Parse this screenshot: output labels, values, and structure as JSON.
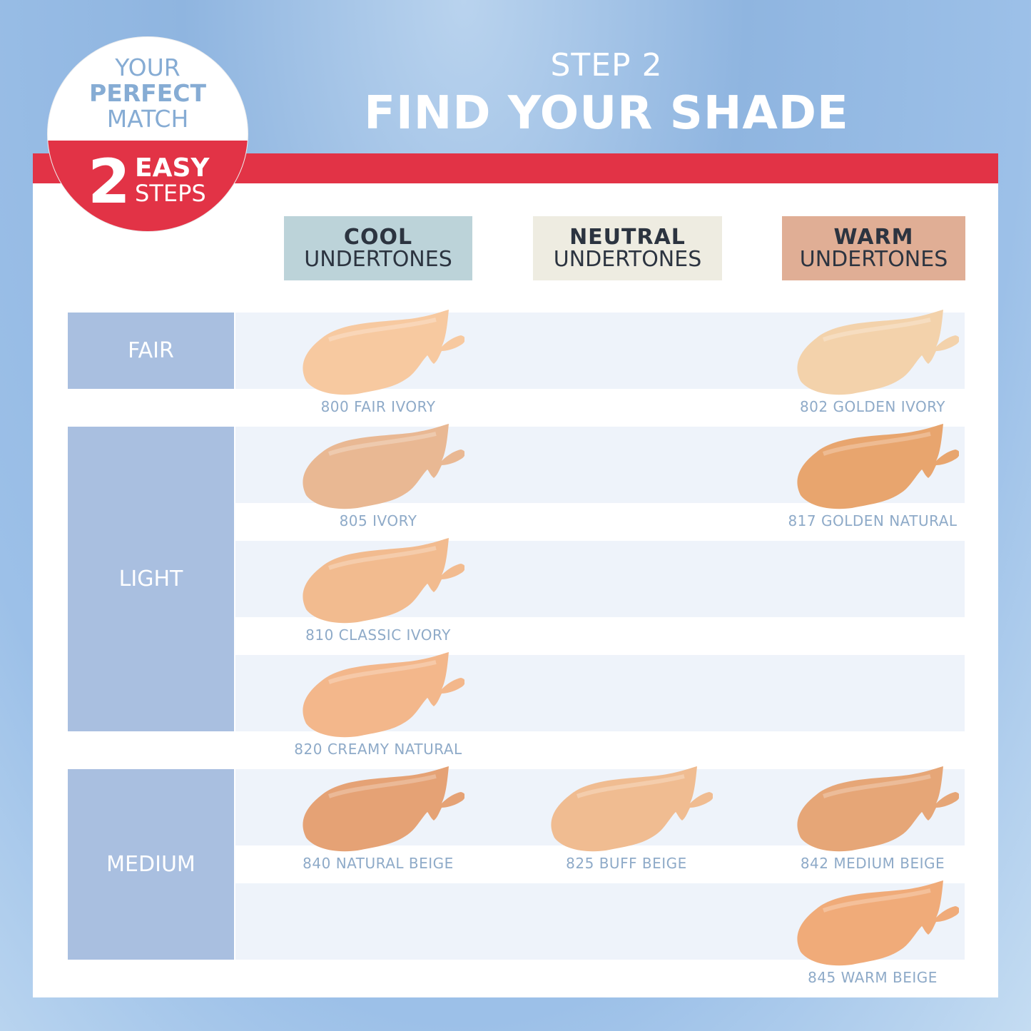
{
  "header": {
    "step": "STEP 2",
    "title": "FIND YOUR SHADE"
  },
  "badge": {
    "line1": "YOUR",
    "line2": "PERFECT",
    "line3": "MATCH",
    "number": "2",
    "word1": "EASY",
    "word2": "STEPS"
  },
  "colors": {
    "accent_red": "#e23346",
    "category_blue": "#a9bfe0",
    "label_blue": "#8eaac8"
  },
  "undertones": [
    {
      "bold": "COOL",
      "sub": "UNDERTONES",
      "color": "#bcd3d9"
    },
    {
      "bold": "NEUTRAL",
      "sub": "UNDERTONES",
      "color": "#eeece1"
    },
    {
      "bold": "WARM",
      "sub": "UNDERTONES",
      "color": "#e0ae95"
    }
  ],
  "categories": [
    {
      "label": "FAIR"
    },
    {
      "label": "LIGHT"
    },
    {
      "label": "MEDIUM"
    }
  ],
  "shades": [
    {
      "name": "800 FAIR IVORY",
      "row": 0,
      "col": 0,
      "color": "#f7c9a0"
    },
    {
      "name": "802 GOLDEN IVORY",
      "row": 0,
      "col": 2,
      "color": "#f3d2ab"
    },
    {
      "name": "805 IVORY",
      "row": 1,
      "col": 0,
      "color": "#e9b893"
    },
    {
      "name": "817 GOLDEN NATURAL",
      "row": 1,
      "col": 2,
      "color": "#e8a56e"
    },
    {
      "name": "810 CLASSIC IVORY",
      "row": 2,
      "col": 0,
      "color": "#f2bb8f"
    },
    {
      "name": "820 CREAMY NATURAL",
      "row": 3,
      "col": 0,
      "color": "#f3b78b"
    },
    {
      "name": "840 NATURAL BEIGE",
      "row": 4,
      "col": 0,
      "color": "#e5a275"
    },
    {
      "name": "825 BUFF BEIGE",
      "row": 4,
      "col": 1,
      "color": "#f0bc91"
    },
    {
      "name": "842 MEDIUM BEIGE",
      "row": 4,
      "col": 2,
      "color": "#e6a677"
    },
    {
      "name": "845 WARM BEIGE",
      "row": 5,
      "col": 2,
      "color": "#f0ab79"
    }
  ]
}
